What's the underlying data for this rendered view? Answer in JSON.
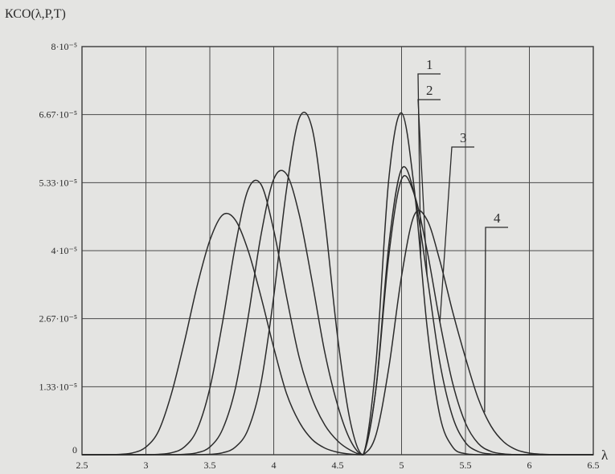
{
  "chart_data": {
    "type": "line",
    "ylabel": "КСО(λ,P,T)",
    "xlabel": "λ",
    "xlim": [
      2.5,
      6.5
    ],
    "ylim": [
      0,
      8e-05
    ],
    "grid": true,
    "x_ticks": [
      "2.5",
      "3",
      "3.5",
      "4",
      "4.5",
      "5",
      "5.5",
      "6",
      "6.5"
    ],
    "y_ticks": [
      {
        "value": 0,
        "label": "0"
      },
      {
        "value": 1.333e-05,
        "label": "1.33·10⁻⁵"
      },
      {
        "value": 2.667e-05,
        "label": "2.67·10⁻⁵"
      },
      {
        "value": 4e-05,
        "label": "4·10⁻⁵"
      },
      {
        "value": 5.333e-05,
        "label": "5.33·10⁻⁵"
      },
      {
        "value": 6.667e-05,
        "label": "6.67·10⁻⁵"
      },
      {
        "value": 8e-05,
        "label": "8·10⁻⁵"
      }
    ],
    "x": [
      2.5,
      2.6,
      2.7,
      2.8,
      2.9,
      3.0,
      3.1,
      3.2,
      3.3,
      3.4,
      3.5,
      3.6,
      3.7,
      3.8,
      3.9,
      4.0,
      4.1,
      4.2,
      4.3,
      4.4,
      4.5,
      4.6,
      4.7,
      4.8,
      4.9,
      5.0,
      5.1,
      5.2,
      5.3,
      5.4,
      5.5,
      5.6,
      5.7,
      5.8,
      5.9,
      6.0,
      6.1,
      6.2,
      6.3,
      6.4,
      6.5
    ],
    "series": [
      {
        "name": "1",
        "values": [
          0,
          0,
          0,
          0,
          0,
          0,
          0,
          0,
          2e-09,
          1.3e-08,
          7.6e-08,
          3.8e-07,
          1.5e-06,
          5e-06,
          1.4e-05,
          3.1e-05,
          5.2e-05,
          6.6e-05,
          6.4e-05,
          4.6e-05,
          2.3e-05,
          6.4e-06,
          0,
          1.8e-05,
          5.4e-05,
          6.7e-05,
          5.2e-05,
          2.5e-05,
          7.6e-06,
          1.5e-06,
          1.9e-07,
          1.6e-08,
          1e-09,
          0,
          0,
          0,
          0,
          0,
          0,
          0,
          0
        ]
      },
      {
        "name": "2",
        "values": [
          0,
          0,
          0,
          0,
          0,
          0,
          2e-09,
          1.3e-08,
          7.9e-08,
          3.8e-07,
          1.5e-06,
          5e-06,
          1.3e-05,
          2.7e-05,
          4.3e-05,
          5.4e-05,
          5.5e-05,
          4.7e-05,
          3.4e-05,
          2e-05,
          9.7e-06,
          2.8e-06,
          0,
          1.3e-05,
          4.1e-05,
          5.6e-05,
          5.1e-05,
          3.5e-05,
          1.8e-05,
          7.4e-06,
          2.4e-06,
          6.1e-07,
          1.2e-07,
          1.9e-08,
          2e-09,
          0,
          0,
          0,
          0,
          0,
          0
        ]
      },
      {
        "name": "3",
        "values": [
          0,
          0,
          0,
          0,
          2e-09,
          1.3e-08,
          7.9e-08,
          3.8e-07,
          1.5e-06,
          4.9e-06,
          1.3e-05,
          2.6e-05,
          4.1e-05,
          5.2e-05,
          5.3e-05,
          4.4e-05,
          3.1e-05,
          1.9e-05,
          1.1e-05,
          5.8e-06,
          2.7e-06,
          8.9e-07,
          0,
          1.3e-05,
          3.9e-05,
          5.4e-05,
          5.1e-05,
          4e-05,
          2.6e-05,
          1.4e-05,
          6.2e-06,
          2.2e-06,
          6.4e-07,
          1.5e-07,
          2.7e-08,
          4e-09,
          0,
          0,
          0,
          0,
          0
        ]
      },
      {
        "name": "4",
        "values": [
          0,
          1e-09,
          1.3e-08,
          7.9e-08,
          3.8e-07,
          1.5e-06,
          4.7e-06,
          1.2e-05,
          2.2e-05,
          3.3e-05,
          4.2e-05,
          4.7e-05,
          4.6e-05,
          4e-05,
          3.1e-05,
          2.1e-05,
          1.2e-05,
          6.4e-06,
          3e-06,
          1.3e-06,
          4.9e-07,
          1.2e-07,
          0,
          3.9e-06,
          1.7e-05,
          3.5e-05,
          4.7e-05,
          4.6e-05,
          3.8e-05,
          2.8e-05,
          1.9e-05,
          1.1e-05,
          5.6e-06,
          2.5e-06,
          9.6e-07,
          3.2e-07,
          9e-08,
          2e-08,
          4e-09,
          0,
          0
        ]
      }
    ]
  }
}
